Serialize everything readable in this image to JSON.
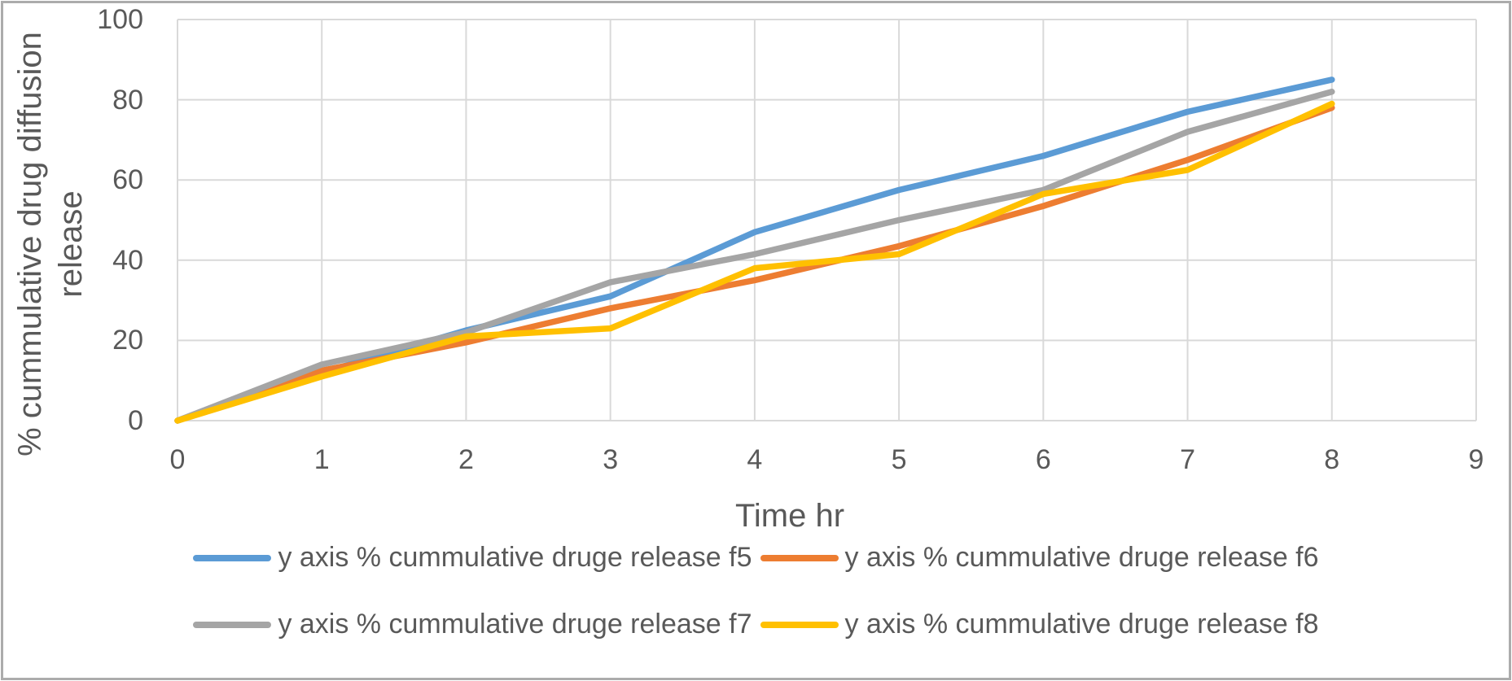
{
  "figure": {
    "background": "#FFFFFF",
    "border_color": "#ACACAC",
    "text_color": "#595959",
    "gridline_color": "#D9D9D9"
  },
  "chart_data": {
    "type": "line",
    "title": "",
    "xlabel": "Time hr",
    "ylabel": "% cummulative drug diffusion release",
    "ylabel_lines": [
      "% cummulative drug diffusion",
      "release"
    ],
    "x": [
      0,
      1,
      2,
      3,
      4,
      5,
      6,
      7,
      8
    ],
    "xlim": [
      0,
      9
    ],
    "ylim": [
      0,
      100
    ],
    "x_ticks": [
      "0",
      "1",
      "2",
      "3",
      "4",
      "5",
      "6",
      "7",
      "8",
      "9"
    ],
    "y_ticks": [
      "0",
      "20",
      "40",
      "60",
      "80",
      "100"
    ],
    "grid": true,
    "legend_position": "bottom",
    "series": [
      {
        "name": "y axis % cummulative druge release f5",
        "color": "#5B9BD5",
        "values": [
          0,
          12,
          22.5,
          31,
          47,
          57.5,
          66,
          77,
          85
        ]
      },
      {
        "name": "y axis % cummulative druge release f6",
        "color": "#ED7D31",
        "values": [
          0,
          12.5,
          19.5,
          28,
          35,
          43.5,
          53.5,
          65,
          78
        ]
      },
      {
        "name": "y axis % cummulative druge release f7",
        "color": "#A5A5A5",
        "values": [
          0,
          14,
          22,
          34.5,
          41.5,
          50,
          57.5,
          72,
          82
        ]
      },
      {
        "name": "y axis % cummulative druge release f8",
        "color": "#FFC000",
        "values": [
          0,
          11,
          21,
          23,
          38,
          41.5,
          56.5,
          62.5,
          79
        ]
      }
    ]
  }
}
